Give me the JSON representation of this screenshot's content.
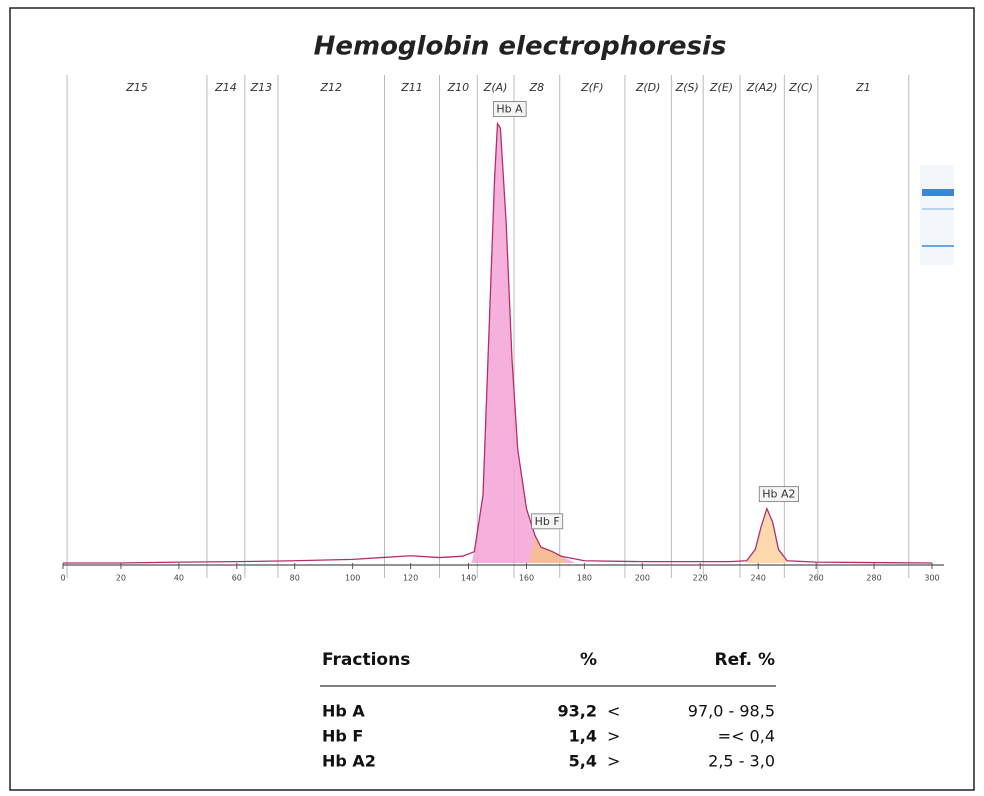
{
  "chart_data": {
    "type": "line",
    "title": "Hemoglobin electrophoresis",
    "zones": [
      "Z15",
      "Z14",
      "Z13",
      "Z12",
      "Z11",
      "Z10",
      "Z(A)",
      "Z8",
      "Z(F)",
      "Z(D)",
      "Z(S)",
      "Z(E)",
      "Z(A2)",
      "Z(C)",
      "Z1"
    ],
    "zone_boundaries": [
      1.4,
      49.7,
      62.8,
      74.2,
      111,
      130,
      143,
      155.7,
      171.5,
      194,
      210,
      221,
      233.7,
      249,
      260.6,
      292
    ],
    "trace": {
      "x": [
        0,
        20,
        40,
        60,
        80,
        100,
        110,
        120,
        130,
        138,
        142,
        145,
        147,
        149,
        150,
        151,
        153,
        155,
        157,
        160,
        163,
        165,
        167,
        169,
        172,
        180,
        200,
        230,
        236,
        239,
        241,
        243,
        245,
        247,
        250,
        260,
        300
      ],
      "y": [
        0,
        0,
        0.2,
        0.3,
        0.5,
        0.8,
        1.2,
        1.6,
        1.2,
        1.5,
        2.5,
        15,
        50,
        85,
        97,
        96,
        75,
        45,
        25,
        12,
        6,
        3.5,
        3,
        2.5,
        1.5,
        0.5,
        0.3,
        0.3,
        0.5,
        3,
        8,
        12,
        9,
        3,
        0.5,
        0.2,
        0
      ]
    },
    "color": "#b0306e",
    "peaks": [
      {
        "label": "Hb A",
        "range": [
          141,
          177
        ],
        "color": "#f3a3d6"
      },
      {
        "label": "Hb F",
        "range": [
          161,
          174
        ],
        "color": "#f7c08a"
      },
      {
        "label": "Hb A2",
        "range": [
          236,
          250
        ],
        "color": "#fbd3a0"
      }
    ],
    "xlim": [
      0,
      300
    ],
    "ylim": [
      0,
      100
    ],
    "xticks": [
      0,
      20,
      40,
      60,
      80,
      100,
      120,
      140,
      160,
      180,
      200,
      220,
      240,
      260,
      280,
      300
    ]
  },
  "table": {
    "header": [
      "Fractions",
      "%",
      "Ref. %"
    ],
    "rows": [
      [
        "Hb A",
        "93,2",
        "<",
        "97,0 - 98,5"
      ],
      [
        "Hb F",
        "1,4",
        ">",
        "=< 0,4"
      ],
      [
        "Hb A2",
        "5,4",
        ">",
        "2,5 - 3,0"
      ]
    ]
  }
}
